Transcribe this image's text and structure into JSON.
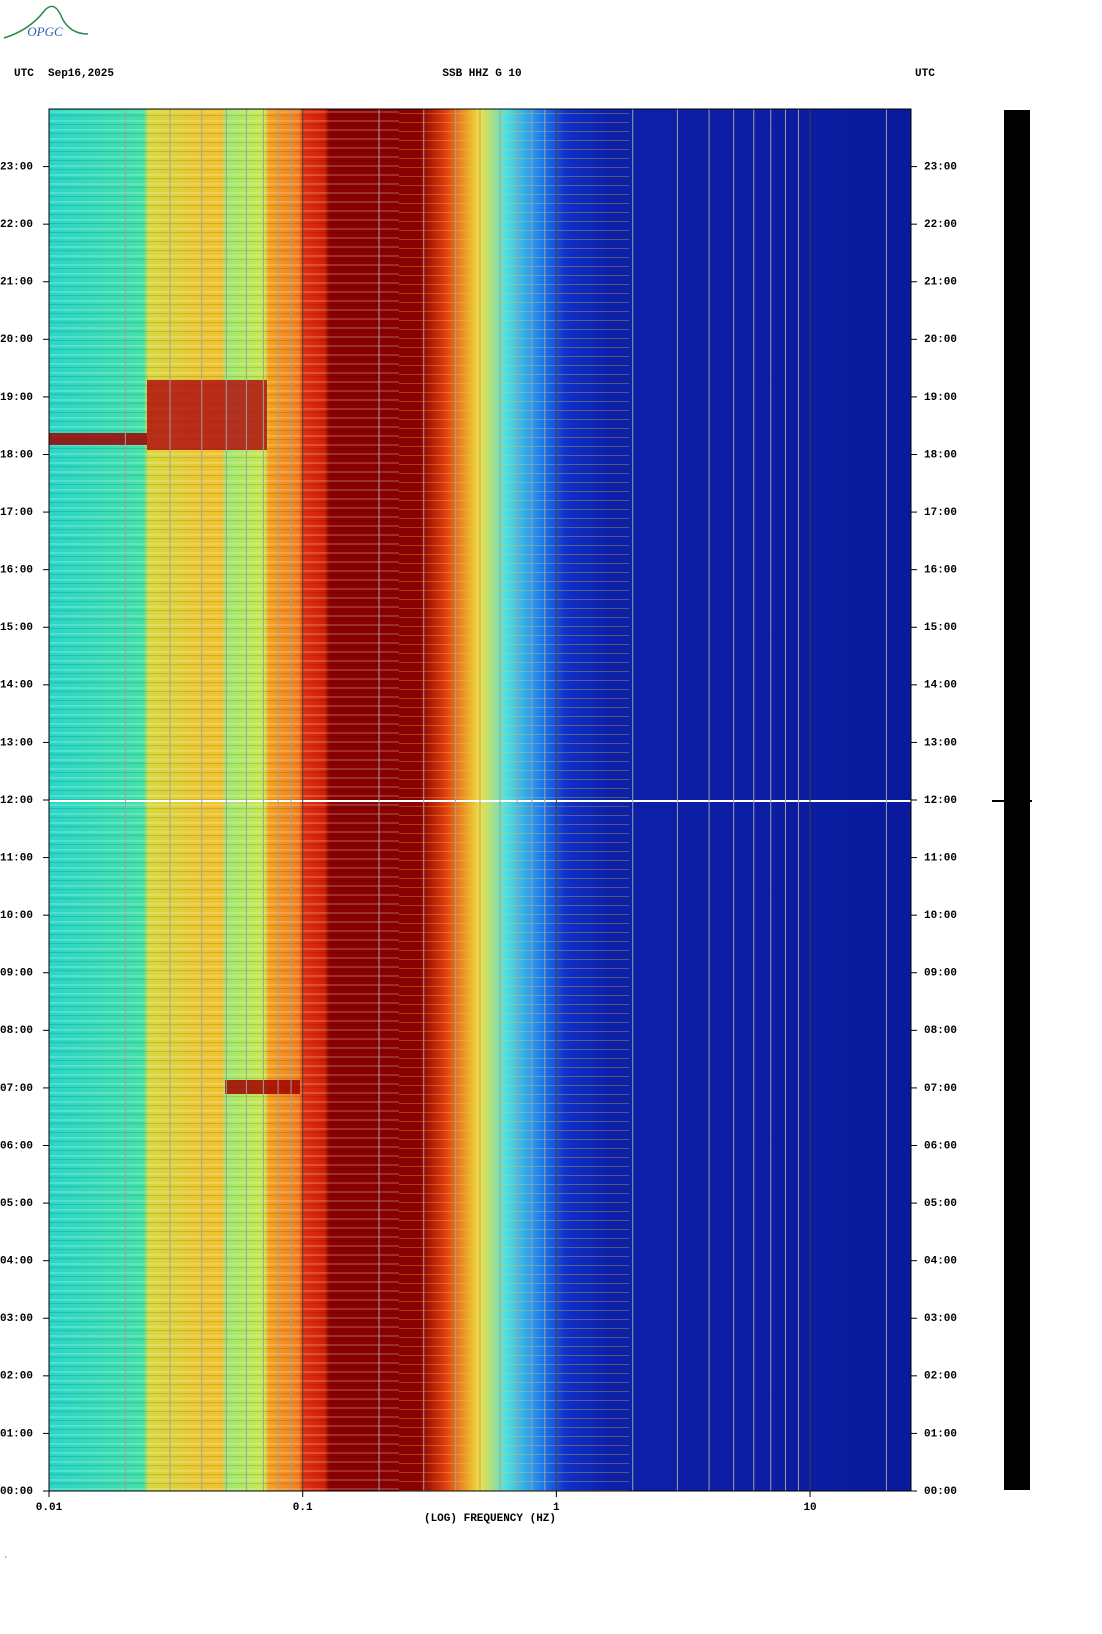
{
  "logo": "OPGC",
  "chart_data": {
    "type": "spectrogram",
    "title": "SSB HHZ G 10",
    "date": "Sep16,2025",
    "time_zone_left": "UTC",
    "time_zone_right": "UTC",
    "xlabel": "(LOG) FREQUENCY (HZ)",
    "xscale": "log",
    "xlim": [
      0.01,
      25
    ],
    "xticks": [
      0.01,
      0.1,
      1,
      10
    ],
    "xgrid": [
      0.02,
      0.03,
      0.04,
      0.05,
      0.06,
      0.07,
      0.08,
      0.09,
      0.2,
      0.3,
      0.4,
      0.5,
      0.6,
      0.7,
      0.8,
      0.9,
      2,
      3,
      4,
      5,
      6,
      7,
      8,
      9,
      20
    ],
    "ylim": [
      0,
      24
    ],
    "yticks": [
      {
        "value": 0,
        "label": "00:00"
      },
      {
        "value": 1,
        "label": "01:00"
      },
      {
        "value": 2,
        "label": "02:00"
      },
      {
        "value": 3,
        "label": "03:00"
      },
      {
        "value": 4,
        "label": "04:00"
      },
      {
        "value": 5,
        "label": "05:00"
      },
      {
        "value": 6,
        "label": "06:00"
      },
      {
        "value": 7,
        "label": "07:00"
      },
      {
        "value": 8,
        "label": "08:00"
      },
      {
        "value": 9,
        "label": "09:00"
      },
      {
        "value": 10,
        "label": "10:00"
      },
      {
        "value": 11,
        "label": "11:00"
      },
      {
        "value": 12,
        "label": "12:00"
      },
      {
        "value": 13,
        "label": "13:00"
      },
      {
        "value": 14,
        "label": "14:00"
      },
      {
        "value": 15,
        "label": "15:00"
      },
      {
        "value": 16,
        "label": "16:00"
      },
      {
        "value": 17,
        "label": "17:00"
      },
      {
        "value": 18,
        "label": "18:00"
      },
      {
        "value": 19,
        "label": "19:00"
      },
      {
        "value": 20,
        "label": "20:00"
      },
      {
        "value": 21,
        "label": "21:00"
      },
      {
        "value": 22,
        "label": "22:00"
      },
      {
        "value": 23,
        "label": "23:00"
      }
    ]
  }
}
